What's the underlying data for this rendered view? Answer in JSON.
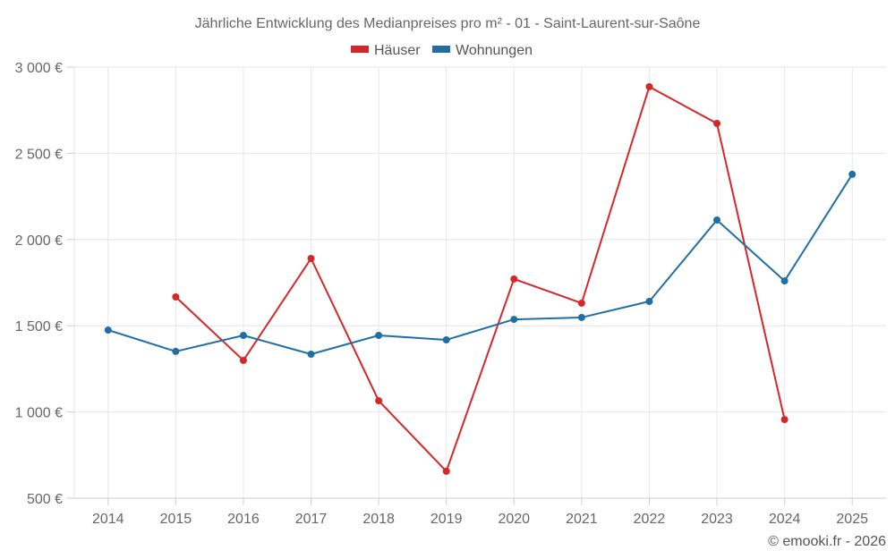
{
  "chart_data": {
    "type": "line",
    "title": "Jährliche Entwicklung des Medianpreises pro m² - 01 - Saint-Laurent-sur-Saône",
    "xlabel": "",
    "ylabel": "",
    "x": [
      "2014",
      "2015",
      "2016",
      "2017",
      "2018",
      "2019",
      "2020",
      "2021",
      "2022",
      "2023",
      "2024",
      "2025"
    ],
    "ylim": [
      500,
      3000
    ],
    "yticks": [
      500,
      1000,
      1500,
      2000,
      2500,
      3000
    ],
    "ytick_labels": [
      "500 €",
      "1 000 €",
      "1 500 €",
      "2 000 €",
      "2 500 €",
      "3 000 €"
    ],
    "grid": true,
    "legend_position": "top-center",
    "series": [
      {
        "name": "Häuser",
        "color": "#d62728",
        "values": [
          null,
          1667,
          1299,
          1890,
          1065,
          656,
          1771,
          1631,
          2886,
          2673,
          956,
          null
        ]
      },
      {
        "name": "Wohnungen",
        "color": "#1f6fa5",
        "values": [
          1475,
          1351,
          1444,
          1335,
          1444,
          1418,
          1537,
          1548,
          1641,
          2113,
          1760,
          2378
        ]
      }
    ]
  },
  "credit": "© emooki.fr - 2026"
}
